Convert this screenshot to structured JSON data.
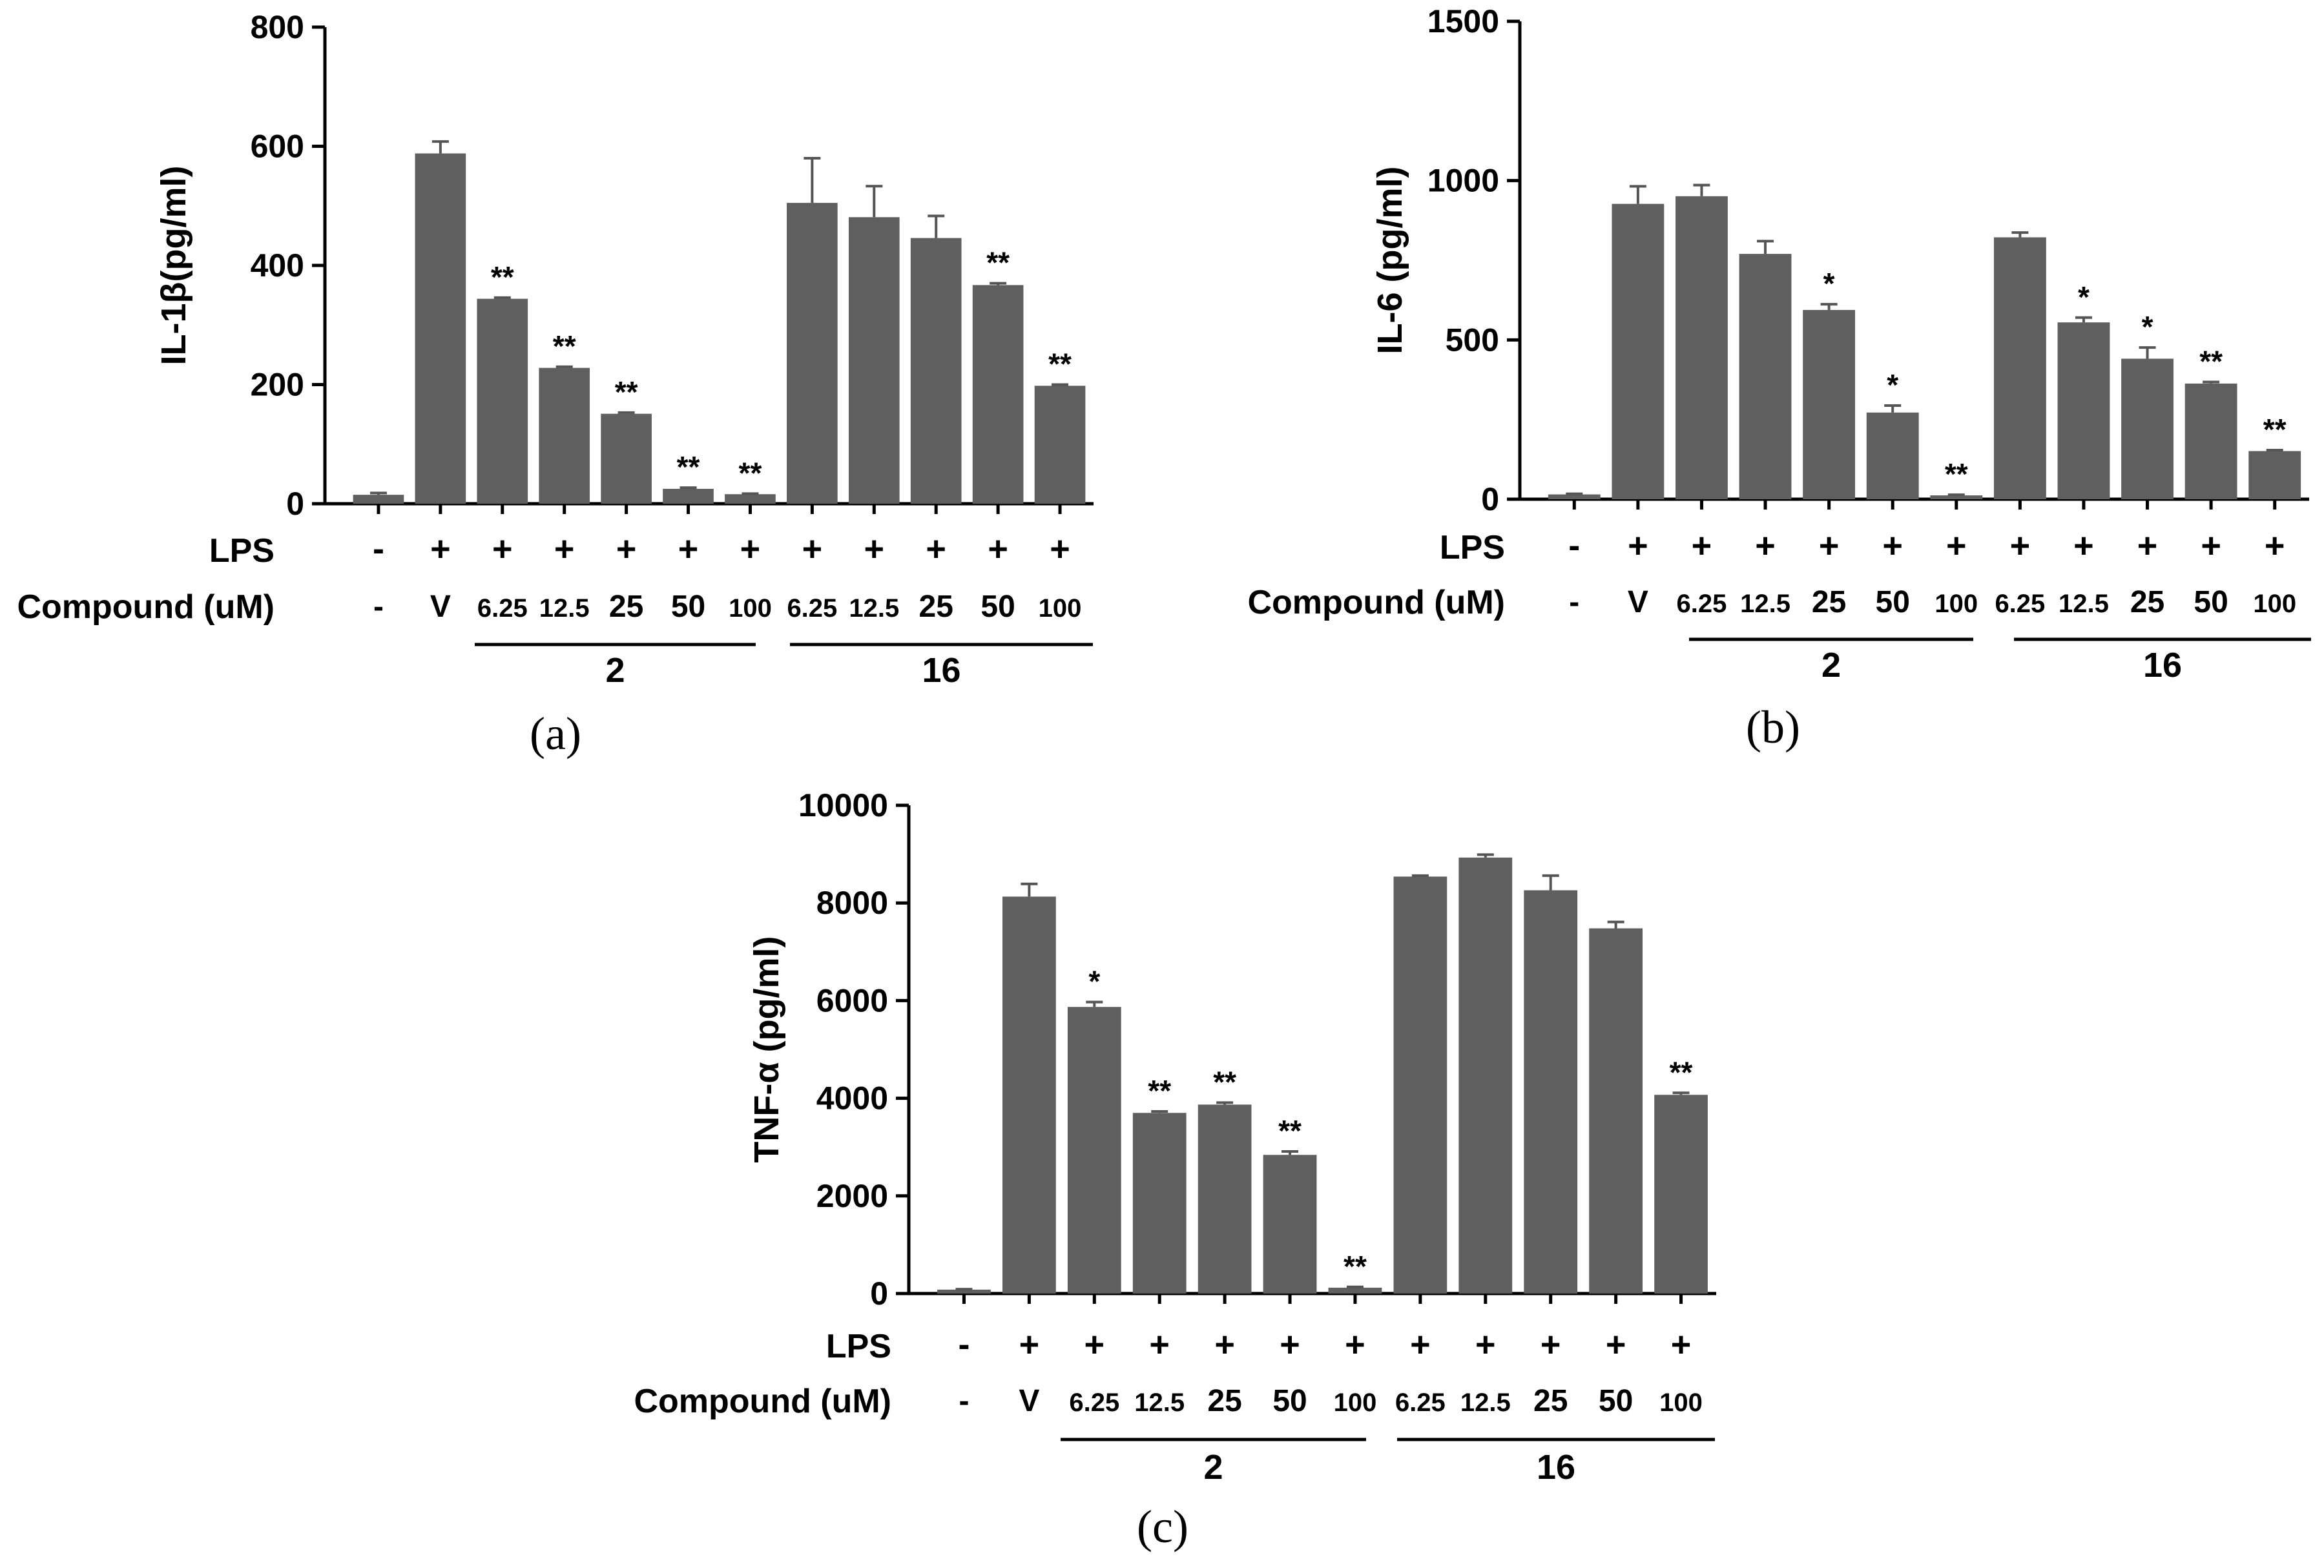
{
  "figure": {
    "bar_color": "#5f5f5f",
    "axis_color": "#000000",
    "row_labels": {
      "lps": "LPS",
      "compound": "Compound (uM)"
    },
    "lps_signs": [
      "-",
      "+",
      "+",
      "+",
      "+",
      "+",
      "+",
      "+",
      "+",
      "+",
      "+",
      "+"
    ],
    "compound_labels": [
      "-",
      "V",
      "6.25",
      "12.5",
      "25",
      "50",
      "100",
      "6.25",
      "12.5",
      "25",
      "50",
      "100"
    ],
    "group_labels": [
      "2",
      "16"
    ]
  },
  "chart_data": [
    {
      "type": "bar",
      "panel_label": "(a)",
      "ylabel": "IL-1β(pg/ml)",
      "ylim": [
        0,
        800
      ],
      "yticks": [
        "0",
        "200",
        "400",
        "600",
        "800"
      ],
      "categories": [
        "-",
        "V",
        "6.25",
        "12.5",
        "25",
        "50",
        "100",
        "6.25",
        "12.5",
        "25",
        "50",
        "100"
      ],
      "values": [
        15,
        588,
        344,
        228,
        151,
        25,
        16,
        505,
        481,
        446,
        367,
        198
      ],
      "errors": [
        3,
        20,
        2,
        2,
        2,
        2,
        1,
        75,
        52,
        37,
        3,
        2
      ],
      "significance": [
        "",
        "",
        "**",
        "**",
        "**",
        "**",
        "**",
        "",
        "",
        "",
        "**",
        "**"
      ]
    },
    {
      "type": "bar",
      "panel_label": "(b)",
      "ylabel": "IL-6 (pg/ml)",
      "ylim": [
        0,
        1500
      ],
      "yticks": [
        "0",
        "500",
        "1000",
        "1500"
      ],
      "categories": [
        "-",
        "V",
        "6.25",
        "12.5",
        "25",
        "50",
        "100",
        "6.25",
        "12.5",
        "25",
        "50",
        "100"
      ],
      "values": [
        15,
        927,
        951,
        770,
        594,
        272,
        12,
        822,
        555,
        441,
        363,
        151
      ],
      "errors": [
        2,
        55,
        35,
        40,
        18,
        22,
        2,
        15,
        15,
        35,
        5,
        3
      ],
      "significance": [
        "",
        "",
        "",
        "",
        "*",
        "*",
        "**",
        "",
        "*",
        "*",
        "**",
        "**"
      ]
    },
    {
      "type": "bar",
      "panel_label": "(c)",
      "ylabel": "TNF-α (pg/ml)",
      "ylim": [
        0,
        10000
      ],
      "yticks": [
        "0",
        "2000",
        "4000",
        "6000",
        "8000",
        "10000"
      ],
      "categories": [
        "-",
        "V",
        "6.25",
        "12.5",
        "25",
        "50",
        "100",
        "6.25",
        "12.5",
        "25",
        "50",
        "100"
      ],
      "values": [
        80,
        8130,
        5870,
        3700,
        3870,
        2840,
        120,
        8540,
        8930,
        8260,
        7480,
        4070
      ],
      "errors": [
        10,
        260,
        100,
        30,
        40,
        70,
        15,
        20,
        60,
        300,
        130,
        40
      ],
      "significance": [
        "",
        "",
        "*",
        "**",
        "**",
        "**",
        "**",
        "",
        "",
        "",
        "",
        "**"
      ]
    }
  ]
}
